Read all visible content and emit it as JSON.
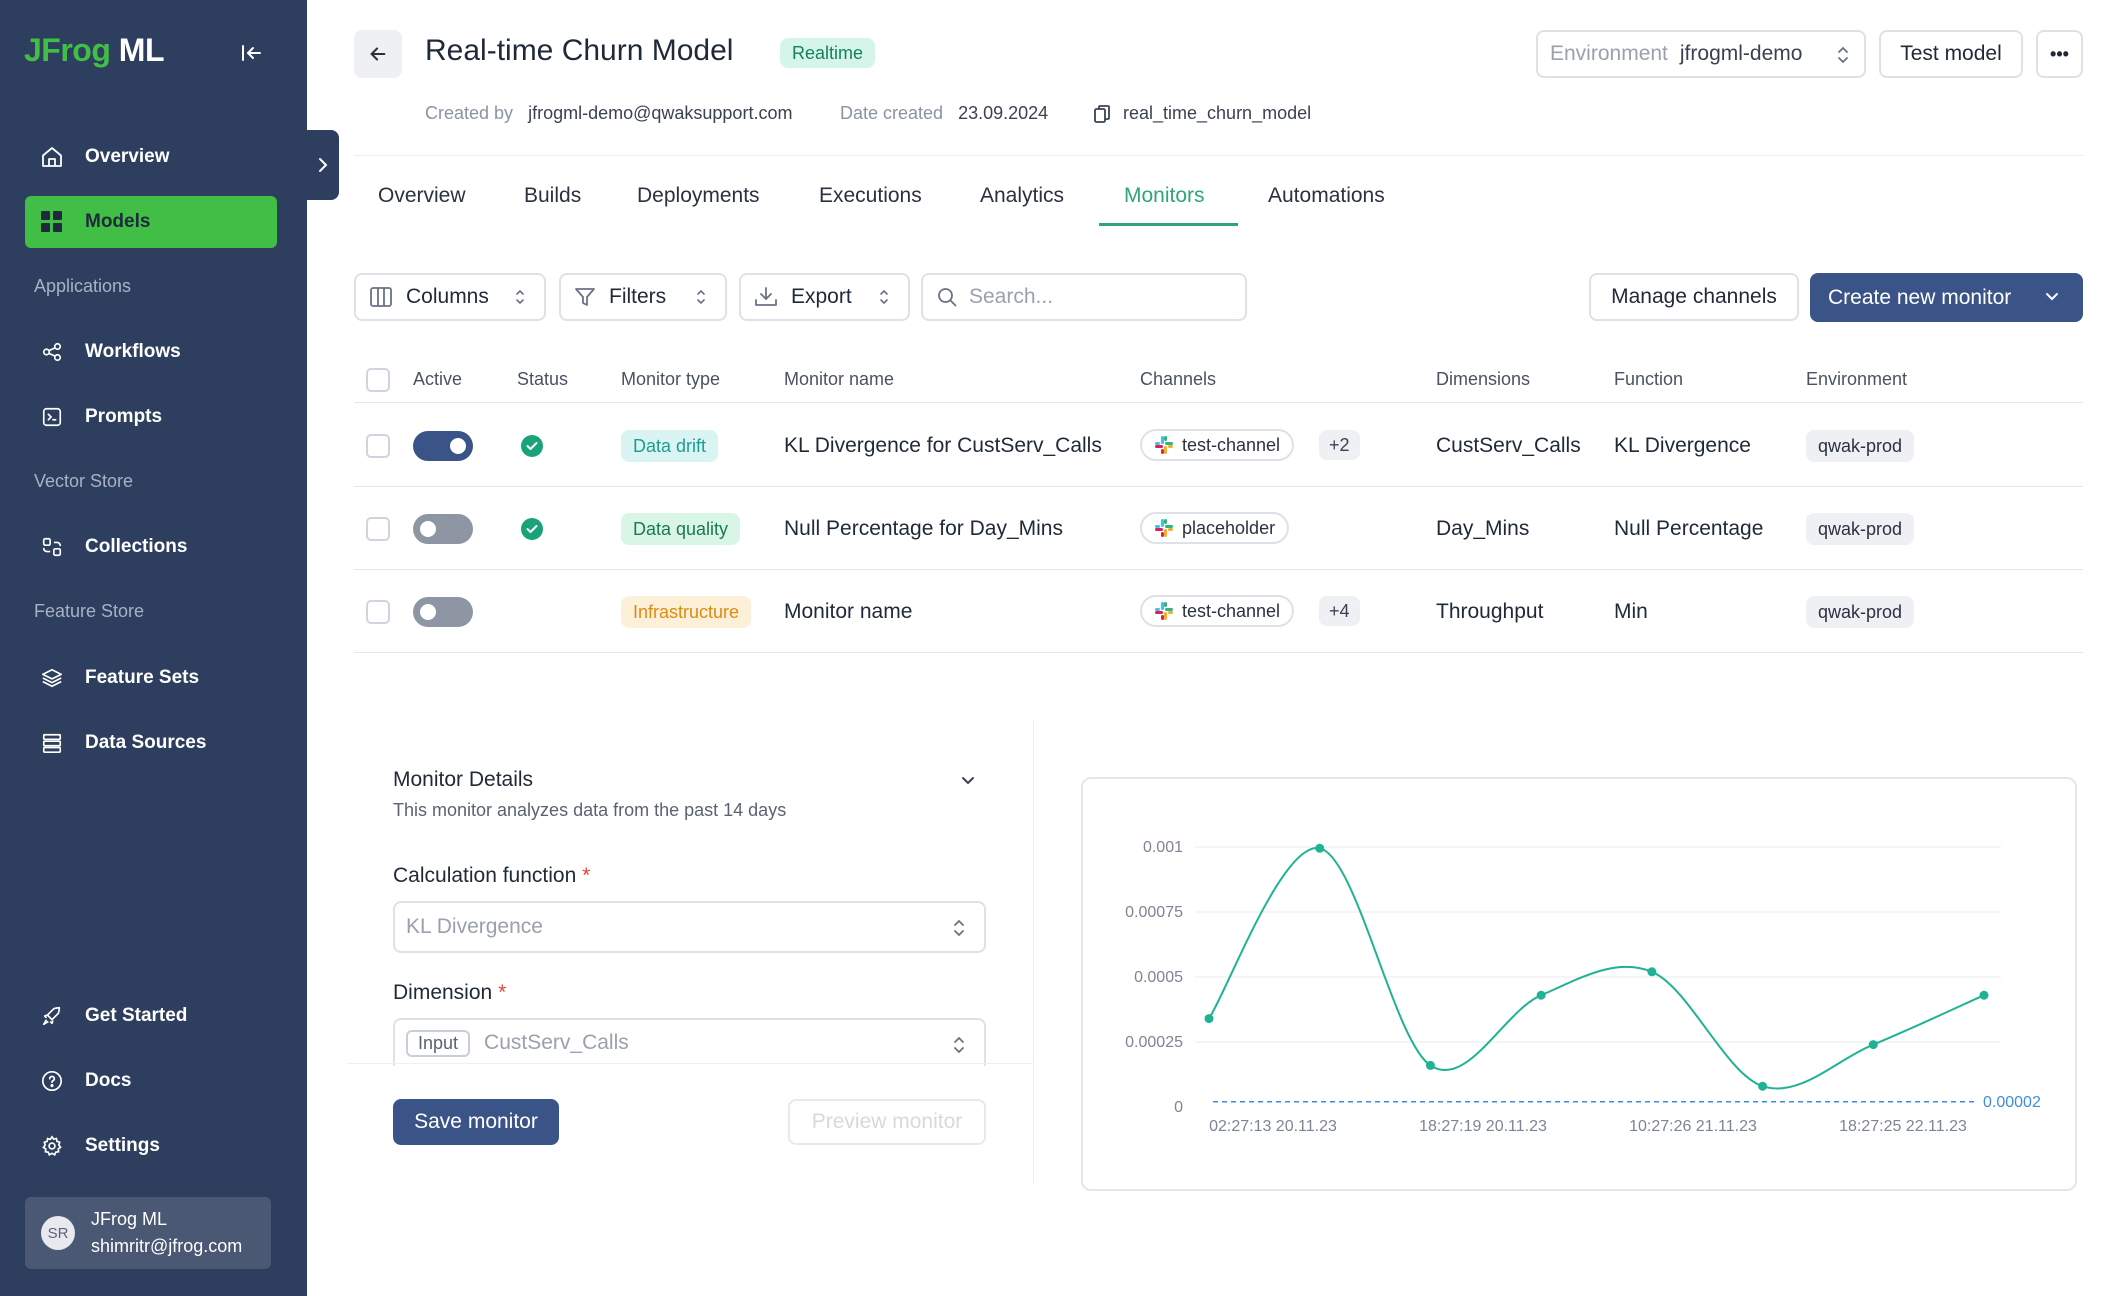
{
  "sidebar": {
    "logo_brand": "JFrog",
    "logo_suffix": "ML",
    "items": [
      {
        "label": "Overview"
      },
      {
        "label": "Models"
      },
      {
        "label": "Workflows"
      },
      {
        "label": "Prompts"
      },
      {
        "label": "Collections"
      },
      {
        "label": "Feature Sets"
      },
      {
        "label": "Data Sources"
      },
      {
        "label": "Get Started"
      },
      {
        "label": "Docs"
      },
      {
        "label": "Settings"
      }
    ],
    "sections": {
      "applications": "Applications",
      "vector_store": "Vector Store",
      "feature_store": "Feature Store"
    },
    "user": {
      "initials": "SR",
      "name": "JFrog ML",
      "email": "shimritr@jfrog.com"
    }
  },
  "header": {
    "title": "Real-time Churn Model",
    "badge": "Realtime",
    "created_by_label": "Created by",
    "created_by": "jfrogml-demo@qwaksupport.com",
    "date_created_label": "Date created",
    "date_created": "23.09.2024",
    "model_id": "real_time_churn_model",
    "environment_label": "Environment",
    "environment_value": "jfrogml-demo",
    "test_model": "Test model",
    "more": "•••"
  },
  "tabs": [
    {
      "label": "Overview"
    },
    {
      "label": "Builds"
    },
    {
      "label": "Deployments"
    },
    {
      "label": "Executions"
    },
    {
      "label": "Analytics"
    },
    {
      "label": "Monitors",
      "active": true
    },
    {
      "label": "Automations"
    }
  ],
  "toolbar": {
    "columns": "Columns",
    "filters": "Filters",
    "export": "Export",
    "search_placeholder": "Search...",
    "manage_channels": "Manage channels",
    "create_monitor": "Create new monitor"
  },
  "table": {
    "headers": [
      "Active",
      "Status",
      "Monitor type",
      "Monitor name",
      "Channels",
      "Dimensions",
      "Function",
      "Environment"
    ],
    "rows": [
      {
        "active": true,
        "status": "ok",
        "type": "Data drift",
        "name": "KL Divergence for CustServ_Calls",
        "channel": "test-channel",
        "extra_channels": "+2",
        "dimension": "CustServ_Calls",
        "function": "KL Divergence",
        "environment": "qwak-prod"
      },
      {
        "active": false,
        "status": "ok",
        "type": "Data quality",
        "name": "Null Percentage for Day_Mins",
        "channel": "placeholder",
        "extra_channels": "",
        "dimension": "Day_Mins",
        "function": "Null Percentage",
        "environment": "qwak-prod"
      },
      {
        "active": false,
        "status": "",
        "type": "Infrastructure",
        "name": "Monitor name",
        "channel": "test-channel",
        "extra_channels": "+4",
        "dimension": "Throughput",
        "function": "Min",
        "environment": "qwak-prod"
      }
    ],
    "type_colors": {
      "Data drift": {
        "bg": "#d9f4f3",
        "fg": "#1e9c93"
      },
      "Data quality": {
        "bg": "#d9f5e6",
        "fg": "#1c7a4e"
      },
      "Infrastructure": {
        "bg": "#fdf0d9",
        "fg": "#e08a12"
      }
    }
  },
  "details": {
    "title": "Monitor Details",
    "subtitle": "This monitor analyzes data from the past 14 days",
    "calc_label": "Calculation function",
    "calc_value": "KL Divergence",
    "dimension_label": "Dimension",
    "dimension_tag": "Input",
    "dimension_value": "CustServ_Calls",
    "required_mark": "*",
    "save": "Save monitor",
    "preview": "Preview monitor"
  },
  "chart_data": {
    "type": "line",
    "title": "",
    "xlabel": "",
    "ylabel": "",
    "x_ticks": [
      "02:27:13 20.11.23",
      "18:27:19 20.11.23",
      "10:27:26 21.11.23",
      "18:27:25 22.11.23"
    ],
    "y_ticks": [
      "0",
      "0.00025",
      "0.0005",
      "0.00075",
      "0.001"
    ],
    "ylim": [
      0,
      0.001
    ],
    "series": [
      {
        "values": [
          0.00034,
          0.000995,
          0.00016,
          0.00043,
          0.00052,
          8e-05,
          0.00024,
          0.00043
        ]
      }
    ],
    "threshold": {
      "value": 2e-05,
      "label": "0.00002"
    },
    "colors": {
      "line": "#1fb394",
      "threshold": "#3b8fd9"
    },
    "grid": true
  }
}
